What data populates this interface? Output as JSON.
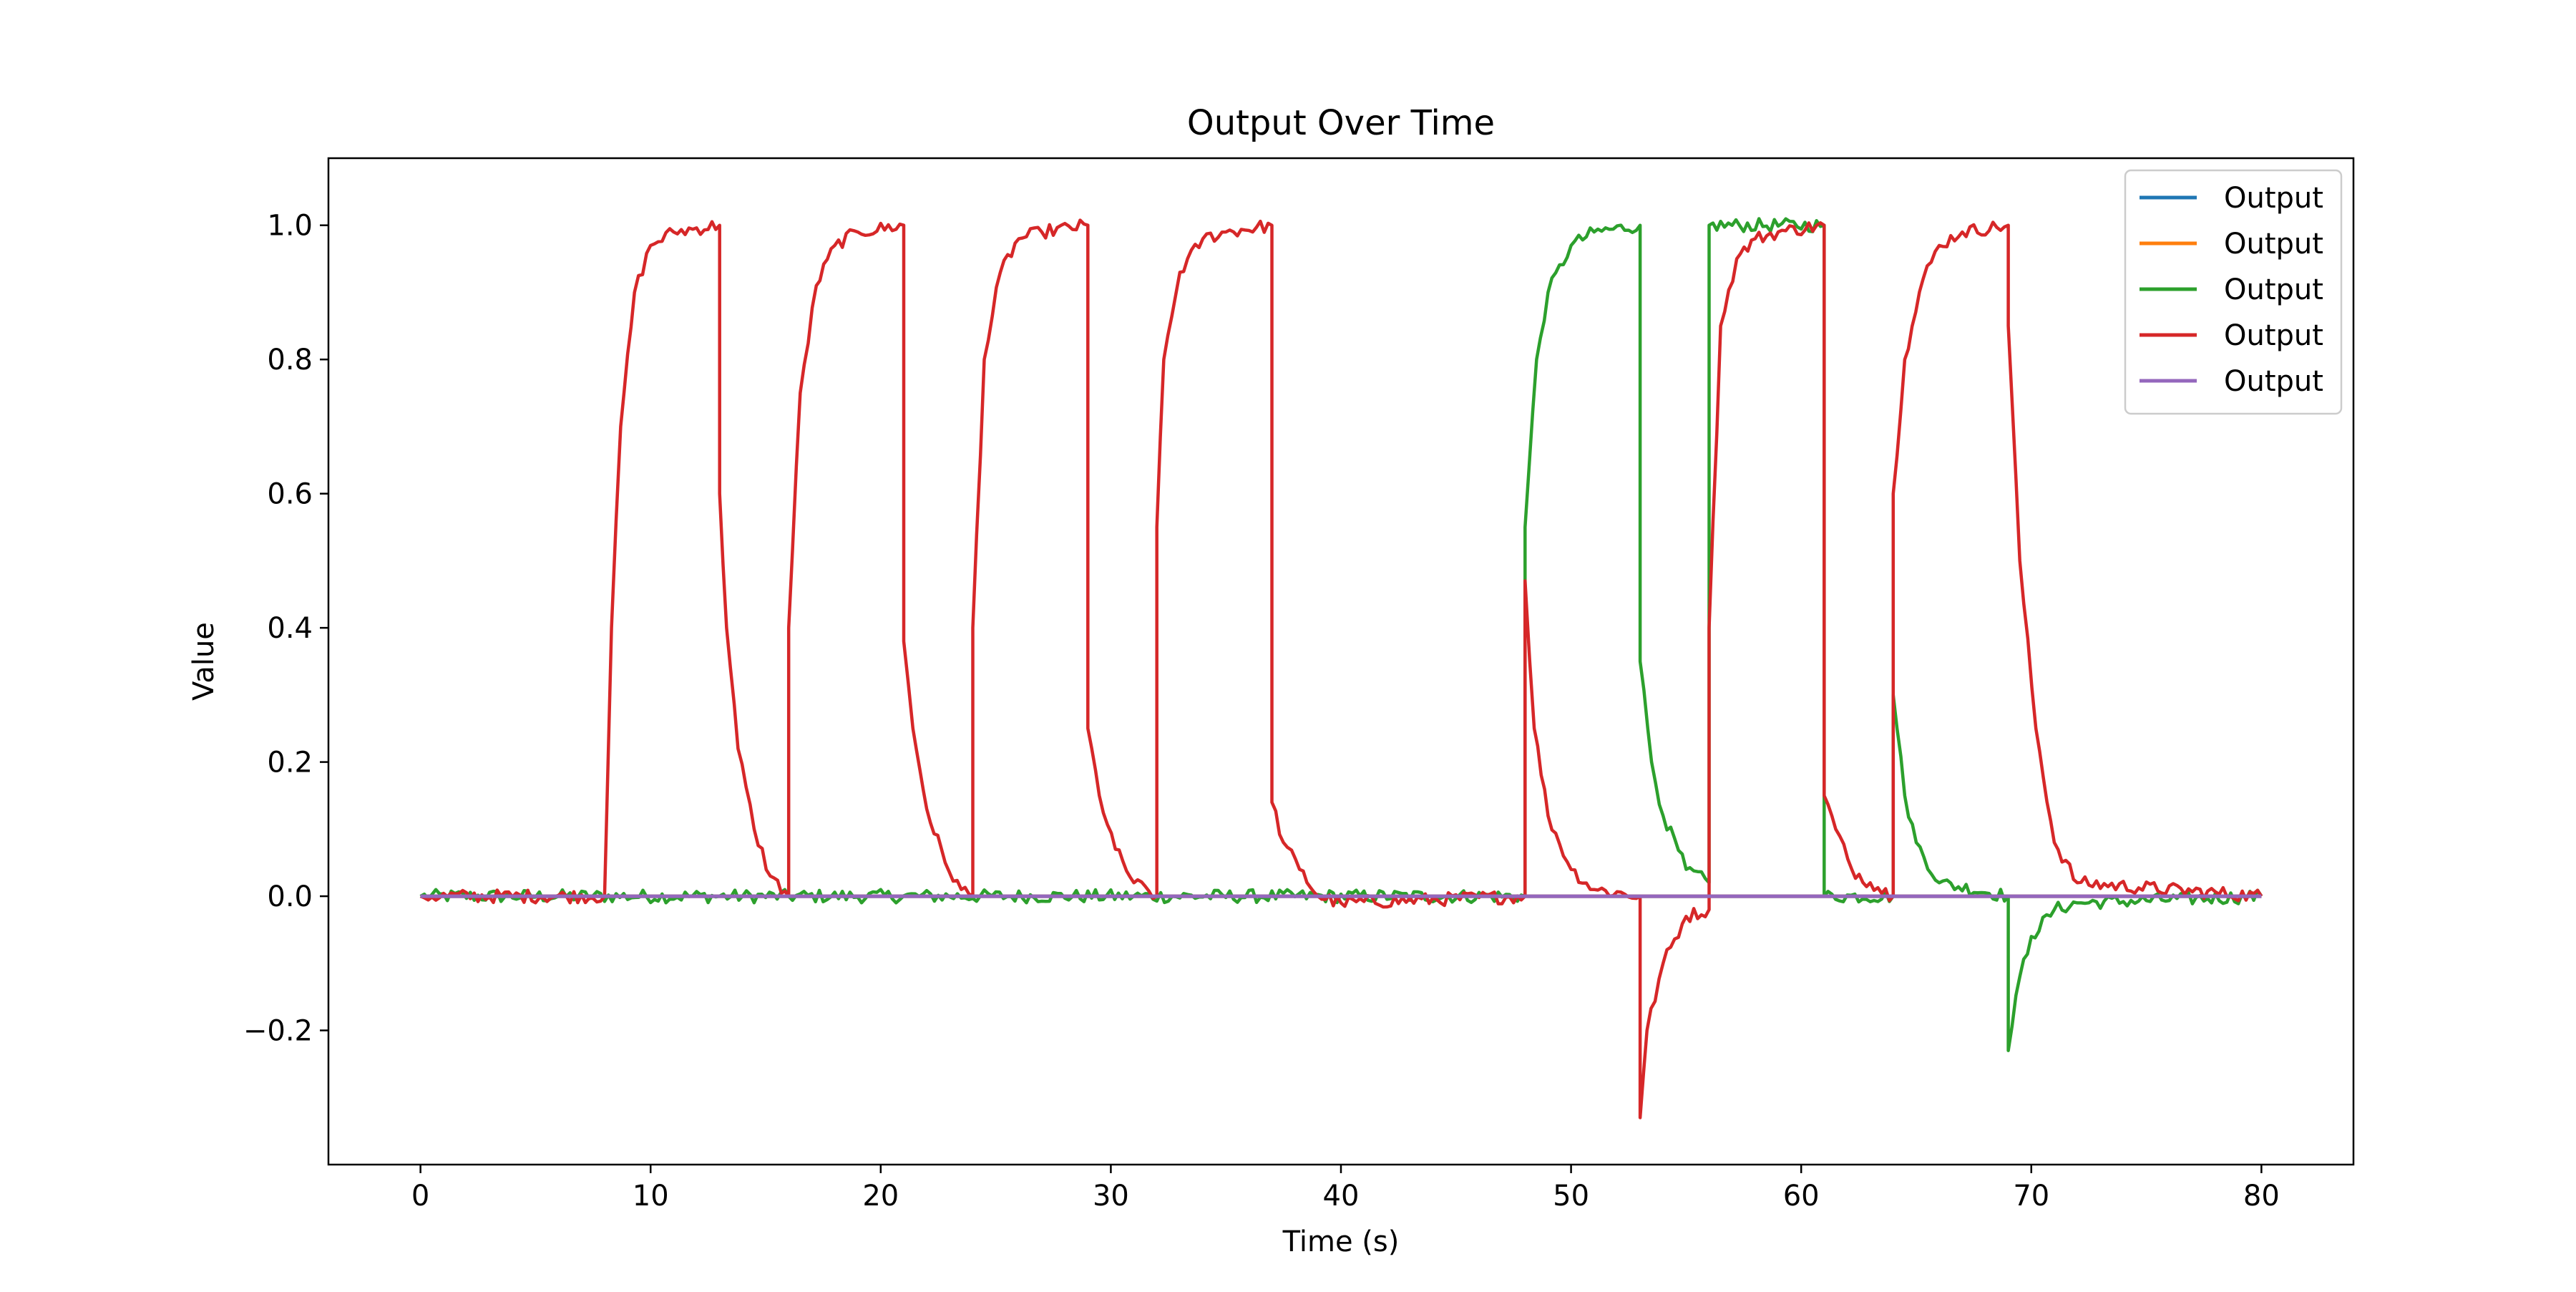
{
  "chart_data": {
    "type": "line",
    "title": "Output Over Time",
    "xlabel": "Time (s)",
    "ylabel": "Value",
    "xlim": [
      -4,
      84
    ],
    "ylim": [
      -0.4,
      1.1
    ],
    "xticks": [
      0,
      10,
      20,
      30,
      40,
      50,
      60,
      70,
      80
    ],
    "yticks": [
      -0.2,
      0.0,
      0.2,
      0.4,
      0.6,
      0.8,
      1.0
    ],
    "ytick_labels": [
      "−0.2",
      "0.0",
      "0.2",
      "0.4",
      "0.6",
      "0.8",
      "1.0"
    ],
    "grid": false,
    "legend_position": "top-right",
    "noise_amplitude": 0.01,
    "series": [
      {
        "name": "Output",
        "color": "#1f77b4",
        "points": [
          [
            0,
            0
          ],
          [
            80,
            0
          ]
        ]
      },
      {
        "name": "Output",
        "color": "#ff7f0e",
        "points": [
          [
            0,
            0
          ],
          [
            80,
            0
          ]
        ]
      },
      {
        "name": "Output",
        "color": "#2ca02c",
        "points": [
          [
            0,
            0
          ],
          [
            48,
            0
          ],
          [
            48,
            0.55
          ],
          [
            48.5,
            0.8
          ],
          [
            49,
            0.9
          ],
          [
            50,
            0.97
          ],
          [
            51,
            0.99
          ],
          [
            53,
            1.0
          ],
          [
            53,
            0.35
          ],
          [
            53.5,
            0.2
          ],
          [
            54,
            0.12
          ],
          [
            55,
            0.04
          ],
          [
            56,
            0.02
          ],
          [
            56,
            1.0
          ],
          [
            61,
            1.0
          ],
          [
            61,
            0.0
          ],
          [
            64,
            0.0
          ],
          [
            64,
            0.3
          ],
          [
            64.5,
            0.15
          ],
          [
            65,
            0.08
          ],
          [
            66,
            0.02
          ],
          [
            69,
            0.0
          ],
          [
            69,
            -0.23
          ],
          [
            69.5,
            -0.12
          ],
          [
            70,
            -0.06
          ],
          [
            71,
            -0.02
          ],
          [
            72,
            -0.01
          ],
          [
            80,
            0.0
          ]
        ]
      },
      {
        "name": "Output",
        "color": "#d62728",
        "points": [
          [
            0,
            0
          ],
          [
            8,
            0
          ],
          [
            8.3,
            0.4
          ],
          [
            8.7,
            0.7
          ],
          [
            9.3,
            0.9
          ],
          [
            10,
            0.97
          ],
          [
            11,
            0.99
          ],
          [
            13,
            1.0
          ],
          [
            13,
            0.6
          ],
          [
            13.3,
            0.4
          ],
          [
            13.8,
            0.22
          ],
          [
            14.5,
            0.1
          ],
          [
            15.2,
            0.03
          ],
          [
            16,
            0.0
          ],
          [
            16,
            0.4
          ],
          [
            16.5,
            0.75
          ],
          [
            17.2,
            0.91
          ],
          [
            18,
            0.97
          ],
          [
            19,
            0.99
          ],
          [
            21,
            1.0
          ],
          [
            21,
            0.38
          ],
          [
            21.4,
            0.25
          ],
          [
            22,
            0.13
          ],
          [
            22.8,
            0.05
          ],
          [
            23.5,
            0.01
          ],
          [
            24,
            0.0
          ],
          [
            24,
            0.4
          ],
          [
            24.5,
            0.8
          ],
          [
            25.2,
            0.93
          ],
          [
            26,
            0.98
          ],
          [
            27,
            0.99
          ],
          [
            29,
            1.0
          ],
          [
            29,
            0.25
          ],
          [
            29.5,
            0.15
          ],
          [
            30.2,
            0.07
          ],
          [
            31,
            0.02
          ],
          [
            32,
            0.0
          ],
          [
            32,
            0.55
          ],
          [
            32.3,
            0.8
          ],
          [
            33,
            0.93
          ],
          [
            34,
            0.98
          ],
          [
            35,
            0.99
          ],
          [
            37,
            1.0
          ],
          [
            37,
            0.14
          ],
          [
            37.5,
            0.08
          ],
          [
            38.2,
            0.04
          ],
          [
            39,
            0.0
          ],
          [
            40,
            -0.01
          ],
          [
            48,
            0.0
          ],
          [
            48,
            0.47
          ],
          [
            48.4,
            0.25
          ],
          [
            49,
            0.12
          ],
          [
            50,
            0.04
          ],
          [
            51,
            0.01
          ],
          [
            53,
            0.0
          ],
          [
            53,
            -0.33
          ],
          [
            53.3,
            -0.2
          ],
          [
            54,
            -0.1
          ],
          [
            55,
            -0.03
          ],
          [
            56,
            -0.02
          ],
          [
            56,
            0.4
          ],
          [
            56.5,
            0.85
          ],
          [
            57.2,
            0.95
          ],
          [
            58,
            0.98
          ],
          [
            59,
            0.99
          ],
          [
            61,
            1.0
          ],
          [
            61,
            0.15
          ],
          [
            61.5,
            0.1
          ],
          [
            62.2,
            0.04
          ],
          [
            63,
            0.02
          ],
          [
            64,
            0.0
          ],
          [
            64,
            0.6
          ],
          [
            64.5,
            0.8
          ],
          [
            65.3,
            0.92
          ],
          [
            66,
            0.97
          ],
          [
            67,
            0.99
          ],
          [
            69,
            1.0
          ],
          [
            69,
            0.85
          ],
          [
            69.5,
            0.5
          ],
          [
            70.2,
            0.25
          ],
          [
            71,
            0.08
          ],
          [
            72,
            0.02
          ],
          [
            80,
            0.0
          ]
        ]
      },
      {
        "name": "Output",
        "color": "#9467bd",
        "points": [
          [
            0,
            0
          ],
          [
            80,
            0
          ]
        ]
      }
    ]
  }
}
